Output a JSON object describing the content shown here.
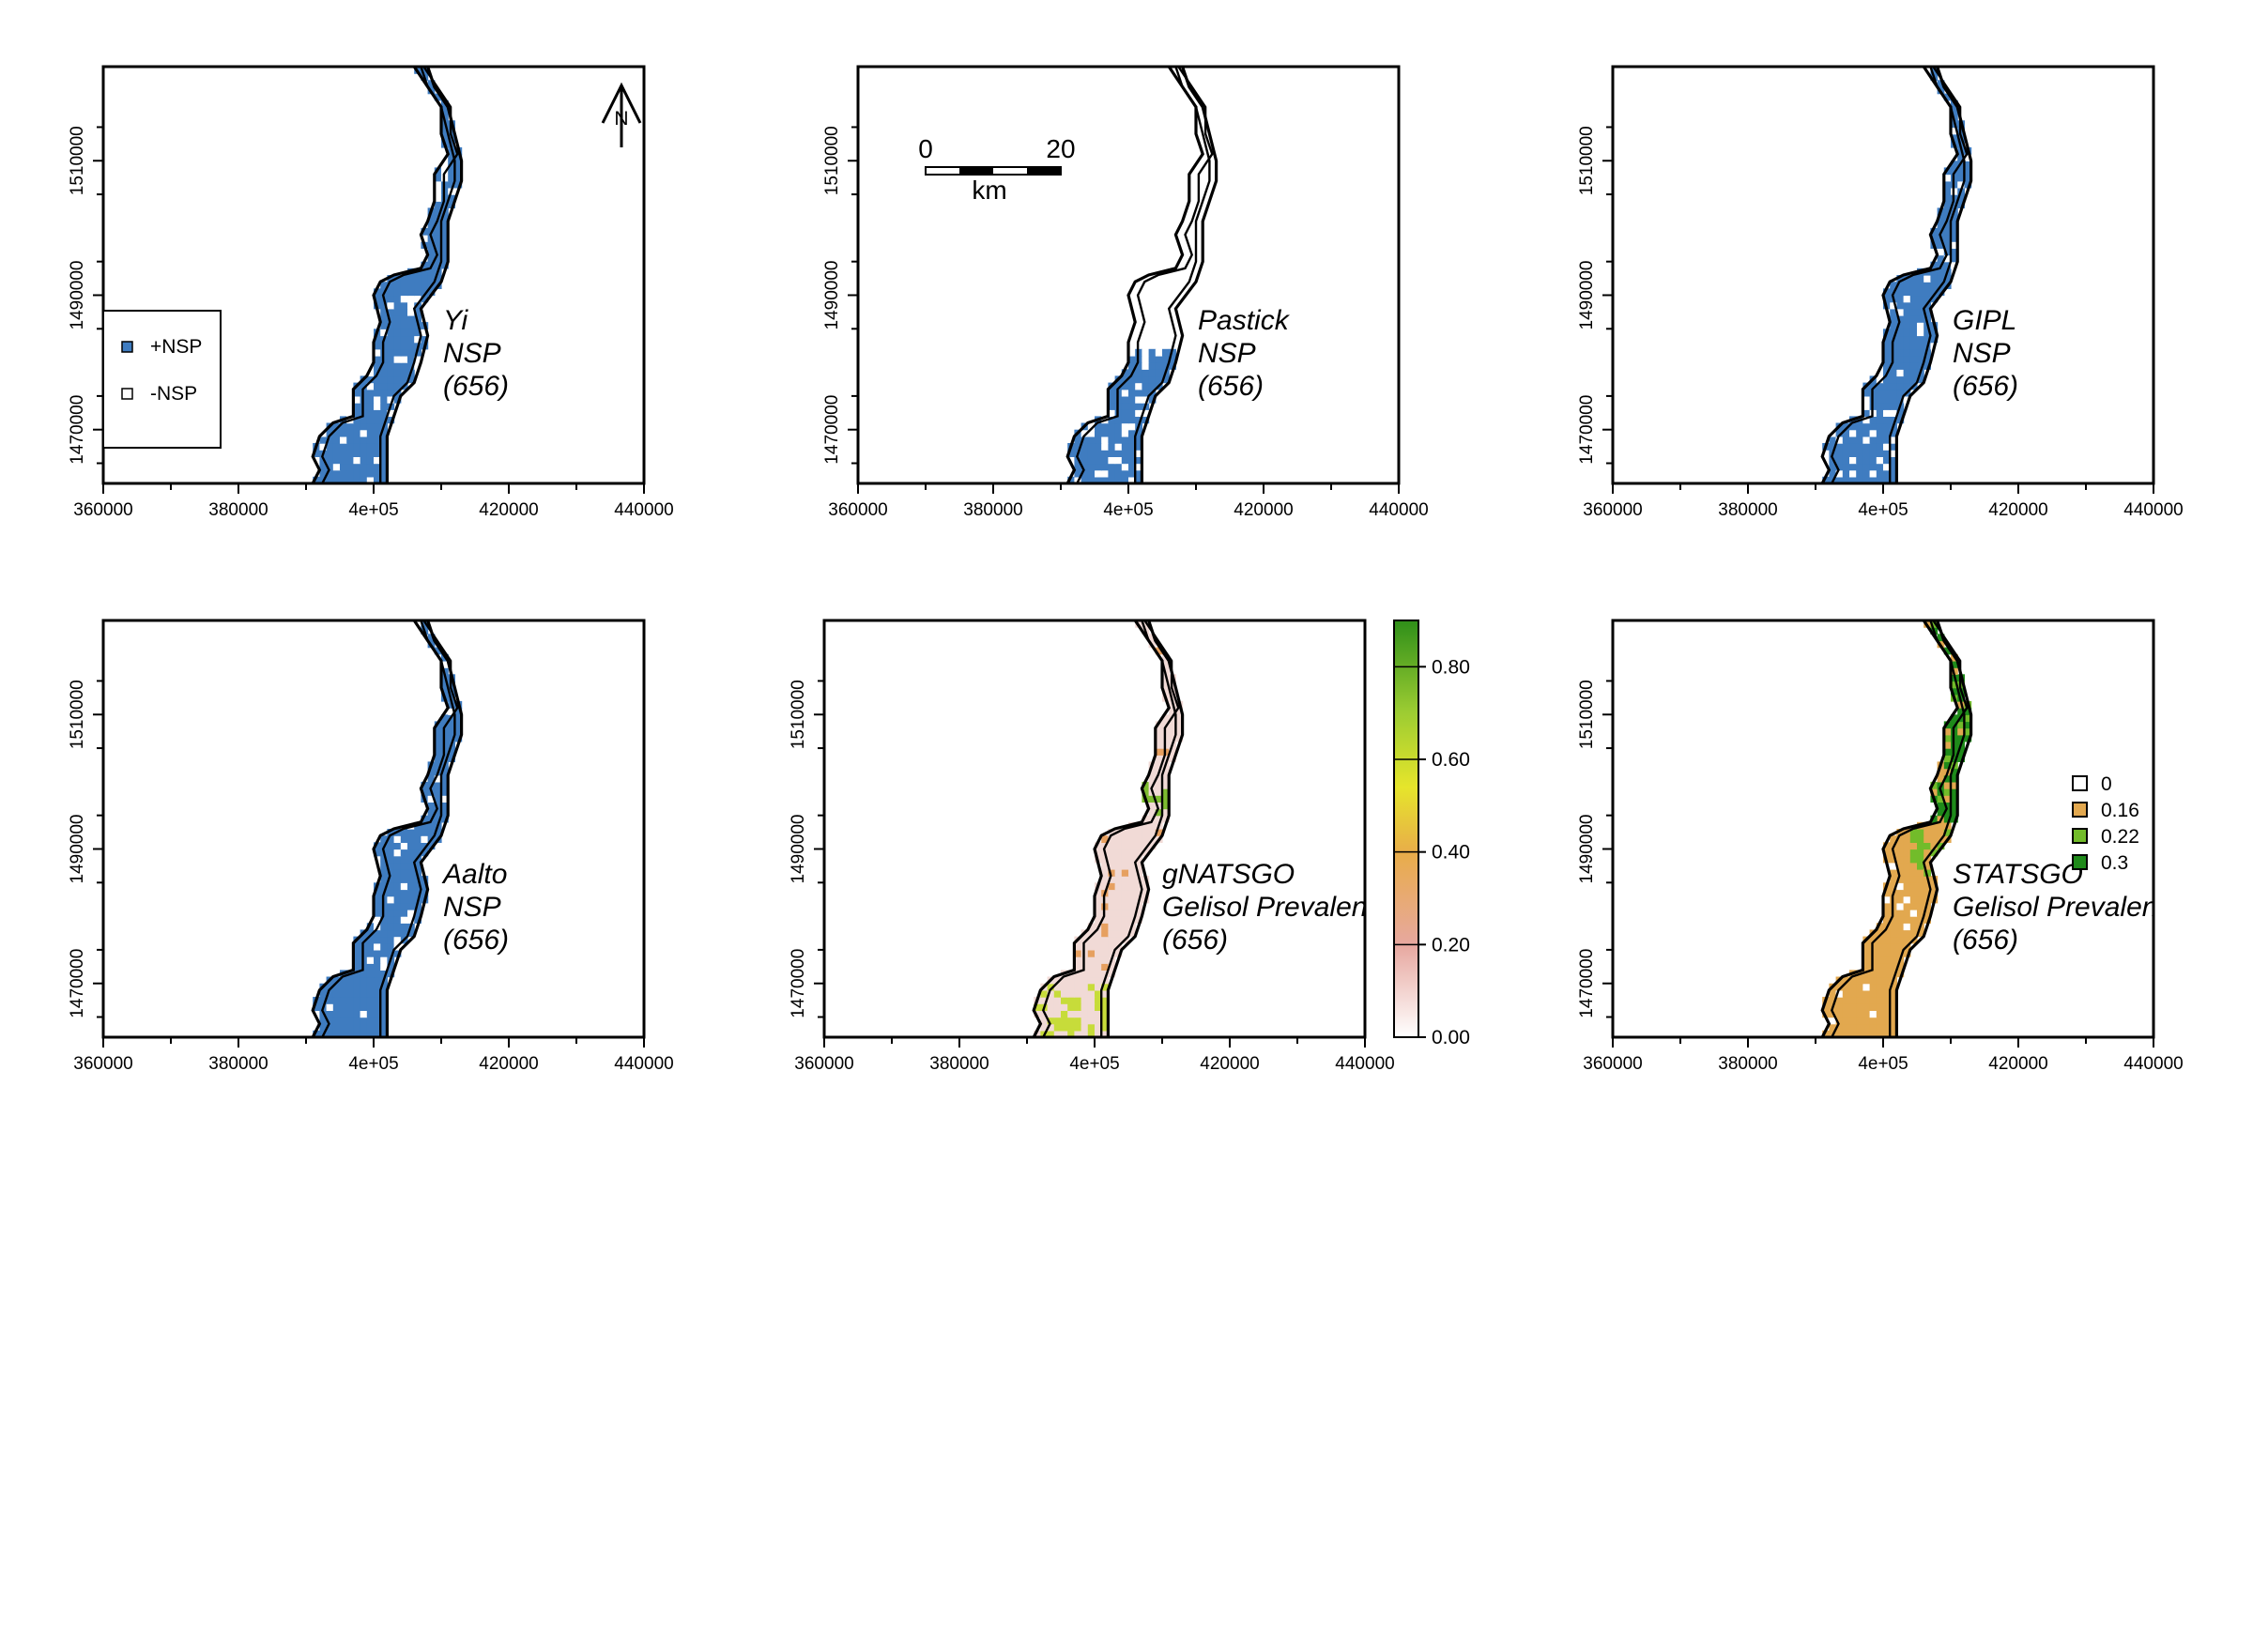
{
  "figure": {
    "x_ticks": [
      "360000",
      "380000",
      "4e+05",
      "420000",
      "440000"
    ],
    "y_ticks": [
      "1470000",
      "1490000",
      "1510000"
    ],
    "panels": [
      {
        "id": "yi",
        "label": [
          "Yi",
          "NSP",
          "(656)"
        ],
        "fill": "nsp"
      },
      {
        "id": "pastick",
        "label": [
          "Pastick",
          "NSP",
          "(656)"
        ],
        "fill": "nsp-south"
      },
      {
        "id": "gipl",
        "label": [
          "GIPL",
          "NSP",
          "(656)"
        ],
        "fill": "nsp"
      },
      {
        "id": "aalto",
        "label": [
          "Aalto",
          "NSP",
          "(656)"
        ],
        "fill": "nsp"
      },
      {
        "id": "gnatsgo",
        "label": [
          "gNATSGO",
          "Gelisol Prevalence",
          "(656)"
        ],
        "fill": "continuous"
      },
      {
        "id": "statsgo",
        "label": [
          "STATSGO",
          "Gelisol Prevalence",
          "(656)"
        ],
        "fill": "classes"
      }
    ],
    "nsp_legend": [
      {
        "label": "+NSP",
        "color": "#3f7cc0"
      },
      {
        "label": "-NSP",
        "color": "#ffffff"
      }
    ],
    "scale_bar": {
      "start": "0",
      "end": "20",
      "unit": "km"
    },
    "north_arrow": "N",
    "colorbar": {
      "ticks": [
        "0.00",
        "0.20",
        "0.40",
        "0.60",
        "0.80"
      ],
      "range": [
        0,
        0.9
      ],
      "colors": [
        "#ffffff",
        "#e7a8a0",
        "#e8ac4a",
        "#e6e52b",
        "#9ccc32",
        "#2f8f19"
      ]
    },
    "class_legend": [
      {
        "label": "0",
        "color": "#ffffff"
      },
      {
        "label": "0.16",
        "color": "#e2a84f"
      },
      {
        "label": "0.22",
        "color": "#72bc2a"
      },
      {
        "label": "0.3",
        "color": "#1f8a1a"
      }
    ],
    "colors": {
      "nsp_fill": "#3f7cc0",
      "outline": "#000000"
    }
  }
}
